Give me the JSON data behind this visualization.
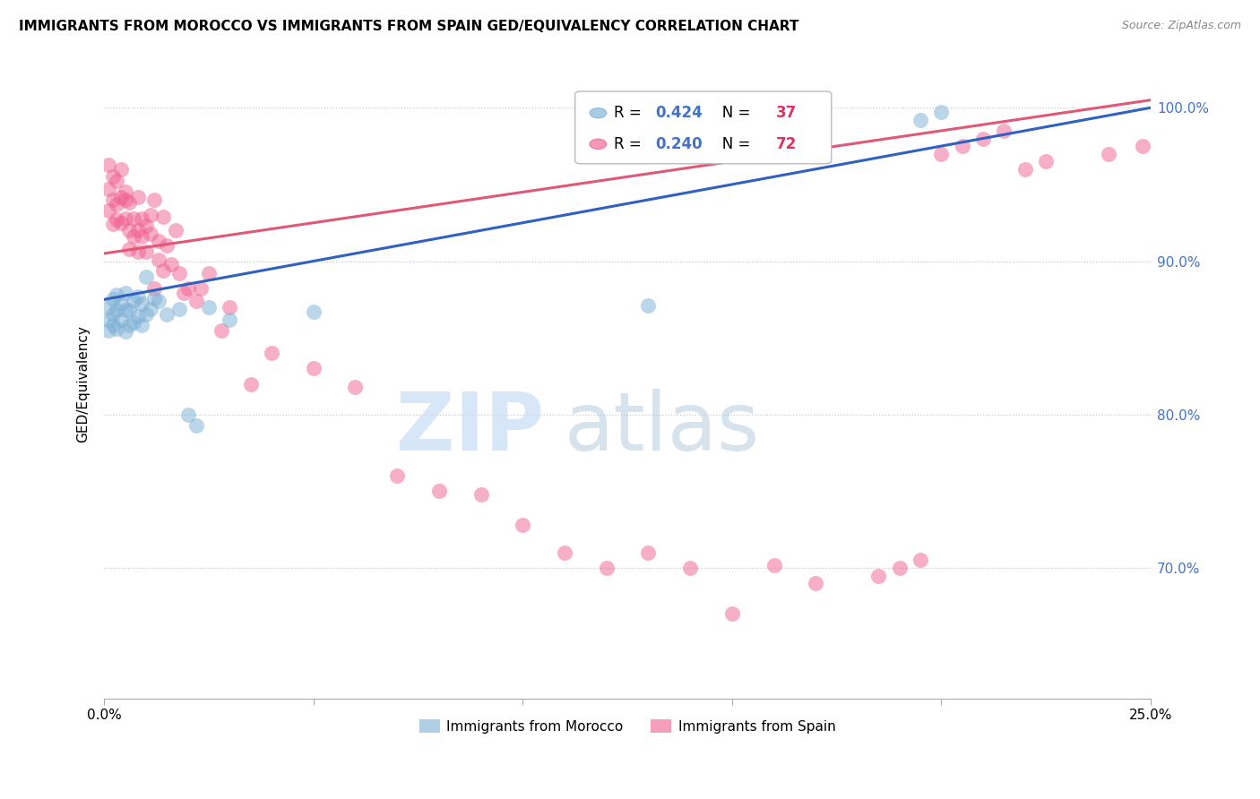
{
  "title": "IMMIGRANTS FROM MOROCCO VS IMMIGRANTS FROM SPAIN GED/EQUIVALENCY CORRELATION CHART",
  "source": "Source: ZipAtlas.com",
  "ylabel": "GED/Equivalency",
  "legend_label1": "Immigrants from Morocco",
  "legend_label2": "Immigrants from Spain",
  "color_morocco": "#7bafd4",
  "color_spain": "#f06090",
  "color_morocco_line": "#3060c0",
  "color_spain_line": "#e05878",
  "xmin": 0.0,
  "xmax": 0.25,
  "ymin": 0.615,
  "ymax": 1.025,
  "ytick_vals": [
    0.7,
    0.8,
    0.9,
    1.0
  ],
  "ytick_labels": [
    "70.0%",
    "80.0%",
    "90.0%",
    "100.0%"
  ],
  "xtick_vals": [
    0.0,
    0.05,
    0.1,
    0.15,
    0.2,
    0.25
  ],
  "xtick_labels": [
    "0.0%",
    "",
    "",
    "",
    "",
    "25.0%"
  ],
  "R_morocco": 0.424,
  "N_morocco": 37,
  "R_spain": 0.24,
  "N_spain": 72,
  "morocco_x": [
    0.001,
    0.001,
    0.001,
    0.002,
    0.002,
    0.002,
    0.003,
    0.003,
    0.003,
    0.004,
    0.004,
    0.005,
    0.005,
    0.005,
    0.006,
    0.006,
    0.007,
    0.007,
    0.008,
    0.008,
    0.009,
    0.009,
    0.01,
    0.01,
    0.011,
    0.012,
    0.013,
    0.015,
    0.018,
    0.02,
    0.022,
    0.025,
    0.03,
    0.05,
    0.13,
    0.195,
    0.2
  ],
  "morocco_y": [
    0.87,
    0.862,
    0.855,
    0.875,
    0.865,
    0.858,
    0.878,
    0.868,
    0.856,
    0.872,
    0.862,
    0.879,
    0.868,
    0.854,
    0.868,
    0.858,
    0.874,
    0.86,
    0.877,
    0.864,
    0.872,
    0.858,
    0.89,
    0.865,
    0.869,
    0.876,
    0.874,
    0.865,
    0.869,
    0.8,
    0.793,
    0.87,
    0.862,
    0.867,
    0.871,
    0.992,
    0.997
  ],
  "spain_x": [
    0.001,
    0.001,
    0.001,
    0.002,
    0.002,
    0.002,
    0.003,
    0.003,
    0.003,
    0.004,
    0.004,
    0.004,
    0.005,
    0.005,
    0.005,
    0.006,
    0.006,
    0.006,
    0.007,
    0.007,
    0.008,
    0.008,
    0.008,
    0.009,
    0.009,
    0.01,
    0.01,
    0.011,
    0.011,
    0.012,
    0.012,
    0.013,
    0.013,
    0.014,
    0.014,
    0.015,
    0.016,
    0.017,
    0.018,
    0.019,
    0.02,
    0.022,
    0.023,
    0.025,
    0.028,
    0.03,
    0.035,
    0.04,
    0.05,
    0.06,
    0.07,
    0.08,
    0.09,
    0.1,
    0.11,
    0.12,
    0.13,
    0.14,
    0.15,
    0.16,
    0.17,
    0.185,
    0.19,
    0.195,
    0.2,
    0.205,
    0.21,
    0.215,
    0.22,
    0.225,
    0.24,
    0.248
  ],
  "spain_y": [
    0.963,
    0.947,
    0.933,
    0.955,
    0.94,
    0.924,
    0.952,
    0.937,
    0.927,
    0.96,
    0.942,
    0.925,
    0.94,
    0.928,
    0.945,
    0.938,
    0.92,
    0.908,
    0.928,
    0.916,
    0.942,
    0.92,
    0.906,
    0.928,
    0.916,
    0.923,
    0.906,
    0.93,
    0.918,
    0.882,
    0.94,
    0.913,
    0.901,
    0.929,
    0.894,
    0.91,
    0.898,
    0.92,
    0.892,
    0.879,
    0.882,
    0.874,
    0.882,
    0.892,
    0.855,
    0.87,
    0.82,
    0.84,
    0.83,
    0.818,
    0.76,
    0.75,
    0.748,
    0.728,
    0.71,
    0.7,
    0.71,
    0.7,
    0.67,
    0.702,
    0.69,
    0.695,
    0.7,
    0.705,
    0.97,
    0.975,
    0.98,
    0.985,
    0.96,
    0.965,
    0.97,
    0.975
  ]
}
